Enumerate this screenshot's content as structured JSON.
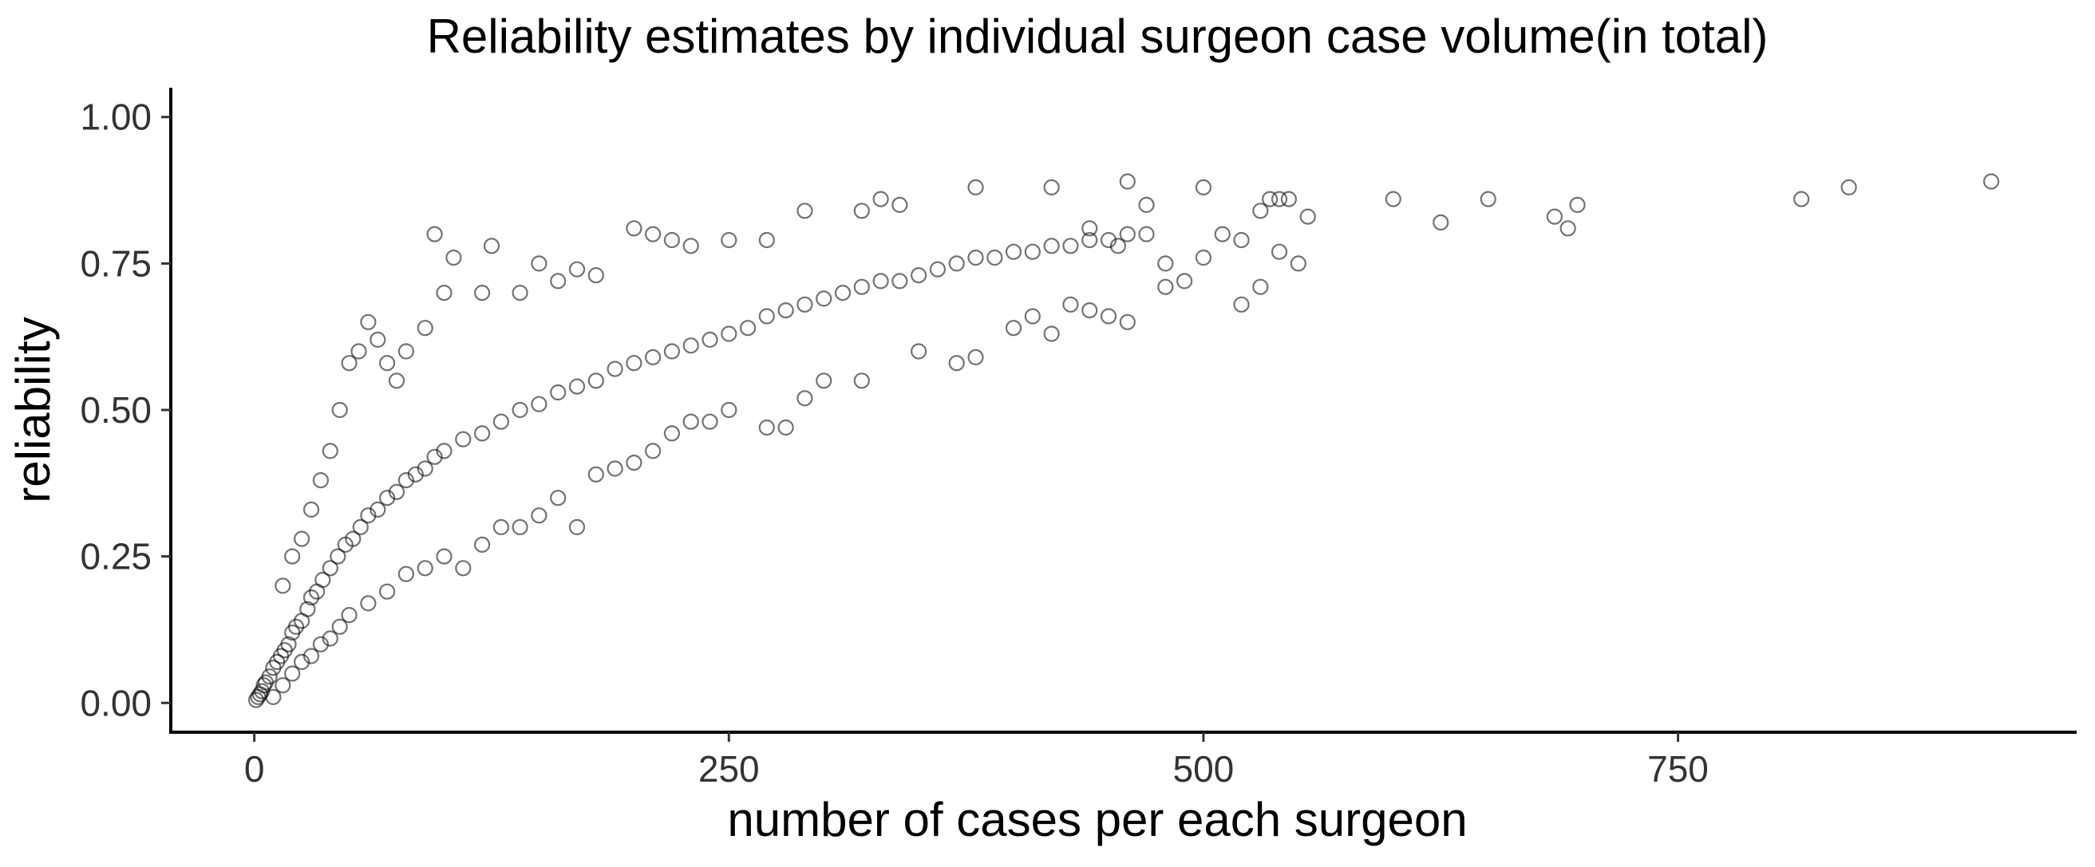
{
  "chart_data": {
    "type": "scatter",
    "title": "Reliability estimates by individual surgeon case volume(in total)",
    "xlabel": "number of cases per each surgeon",
    "ylabel": "reliability",
    "xlim": [
      -44,
      960
    ],
    "ylim": [
      -0.05,
      1.05
    ],
    "x_ticks": [
      0,
      250,
      500,
      750
    ],
    "x_tick_labels": [
      "0",
      "250",
      "500",
      "750"
    ],
    "y_ticks": [
      0,
      0.25,
      0.5,
      0.75,
      1.0
    ],
    "y_tick_labels": [
      "0.00",
      "0.25",
      "0.50",
      "0.75",
      "1.00"
    ],
    "grid": false,
    "legend": "none",
    "marker": {
      "shape": "open-circle",
      "color": "#000000",
      "opacity": 0.55
    },
    "series": [
      {
        "points": [
          [
            1,
            0.005
          ],
          [
            2,
            0.01
          ],
          [
            3,
            0.015
          ],
          [
            4,
            0.02
          ],
          [
            5,
            0.03
          ],
          [
            6,
            0.035
          ],
          [
            8,
            0.045
          ],
          [
            10,
            0.06
          ],
          [
            12,
            0.07
          ],
          [
            14,
            0.08
          ],
          [
            16,
            0.09
          ],
          [
            18,
            0.1
          ],
          [
            20,
            0.12
          ],
          [
            22,
            0.13
          ],
          [
            25,
            0.14
          ],
          [
            28,
            0.16
          ],
          [
            30,
            0.18
          ],
          [
            33,
            0.19
          ],
          [
            36,
            0.21
          ],
          [
            40,
            0.23
          ],
          [
            44,
            0.25
          ],
          [
            48,
            0.27
          ],
          [
            52,
            0.28
          ],
          [
            56,
            0.3
          ],
          [
            60,
            0.32
          ],
          [
            65,
            0.33
          ],
          [
            70,
            0.35
          ],
          [
            75,
            0.36
          ],
          [
            80,
            0.38
          ],
          [
            85,
            0.39
          ],
          [
            90,
            0.4
          ],
          [
            95,
            0.42
          ],
          [
            100,
            0.43
          ],
          [
            110,
            0.45
          ],
          [
            120,
            0.46
          ],
          [
            130,
            0.48
          ],
          [
            140,
            0.5
          ],
          [
            150,
            0.51
          ],
          [
            160,
            0.53
          ],
          [
            170,
            0.54
          ],
          [
            180,
            0.55
          ],
          [
            190,
            0.57
          ],
          [
            200,
            0.58
          ],
          [
            210,
            0.59
          ],
          [
            220,
            0.6
          ],
          [
            230,
            0.61
          ],
          [
            240,
            0.62
          ],
          [
            250,
            0.63
          ],
          [
            260,
            0.64
          ],
          [
            270,
            0.66
          ],
          [
            280,
            0.67
          ],
          [
            290,
            0.68
          ],
          [
            300,
            0.69
          ],
          [
            310,
            0.7
          ],
          [
            320,
            0.71
          ],
          [
            330,
            0.72
          ],
          [
            340,
            0.72
          ],
          [
            350,
            0.73
          ],
          [
            360,
            0.74
          ],
          [
            370,
            0.75
          ],
          [
            380,
            0.76
          ],
          [
            390,
            0.76
          ],
          [
            400,
            0.77
          ],
          [
            410,
            0.77
          ],
          [
            420,
            0.78
          ],
          [
            430,
            0.78
          ],
          [
            440,
            0.79
          ],
          [
            450,
            0.79
          ],
          [
            460,
            0.8
          ],
          [
            470,
            0.8
          ],
          [
            15,
            0.2
          ],
          [
            20,
            0.25
          ],
          [
            25,
            0.28
          ],
          [
            30,
            0.33
          ],
          [
            35,
            0.38
          ],
          [
            40,
            0.43
          ],
          [
            45,
            0.5
          ],
          [
            50,
            0.58
          ],
          [
            55,
            0.6
          ],
          [
            60,
            0.65
          ],
          [
            65,
            0.62
          ],
          [
            70,
            0.58
          ],
          [
            75,
            0.55
          ],
          [
            80,
            0.6
          ],
          [
            90,
            0.64
          ],
          [
            95,
            0.8
          ],
          [
            100,
            0.7
          ],
          [
            105,
            0.76
          ],
          [
            120,
            0.7
          ],
          [
            125,
            0.78
          ],
          [
            140,
            0.7
          ],
          [
            150,
            0.75
          ],
          [
            160,
            0.72
          ],
          [
            170,
            0.74
          ],
          [
            180,
            0.73
          ],
          [
            200,
            0.81
          ],
          [
            210,
            0.8
          ],
          [
            220,
            0.79
          ],
          [
            230,
            0.78
          ],
          [
            250,
            0.79
          ],
          [
            270,
            0.79
          ],
          [
            290,
            0.84
          ],
          [
            320,
            0.84
          ],
          [
            330,
            0.86
          ],
          [
            340,
            0.85
          ],
          [
            380,
            0.88
          ],
          [
            420,
            0.88
          ],
          [
            460,
            0.89
          ],
          [
            500,
            0.88
          ],
          [
            470,
            0.85
          ],
          [
            10,
            0.01
          ],
          [
            15,
            0.03
          ],
          [
            20,
            0.05
          ],
          [
            25,
            0.07
          ],
          [
            30,
            0.08
          ],
          [
            35,
            0.1
          ],
          [
            40,
            0.11
          ],
          [
            45,
            0.13
          ],
          [
            50,
            0.15
          ],
          [
            60,
            0.17
          ],
          [
            70,
            0.19
          ],
          [
            80,
            0.22
          ],
          [
            90,
            0.23
          ],
          [
            100,
            0.25
          ],
          [
            110,
            0.23
          ],
          [
            120,
            0.27
          ],
          [
            130,
            0.3
          ],
          [
            140,
            0.3
          ],
          [
            150,
            0.32
          ],
          [
            160,
            0.35
          ],
          [
            170,
            0.3
          ],
          [
            180,
            0.39
          ],
          [
            190,
            0.4
          ],
          [
            200,
            0.41
          ],
          [
            210,
            0.43
          ],
          [
            220,
            0.46
          ],
          [
            230,
            0.48
          ],
          [
            240,
            0.48
          ],
          [
            250,
            0.5
          ],
          [
            270,
            0.47
          ],
          [
            280,
            0.47
          ],
          [
            290,
            0.52
          ],
          [
            300,
            0.55
          ],
          [
            320,
            0.55
          ],
          [
            350,
            0.6
          ],
          [
            370,
            0.58
          ],
          [
            380,
            0.59
          ],
          [
            400,
            0.64
          ],
          [
            410,
            0.66
          ],
          [
            420,
            0.63
          ],
          [
            430,
            0.68
          ],
          [
            440,
            0.67
          ],
          [
            450,
            0.66
          ],
          [
            460,
            0.65
          ],
          [
            480,
            0.71
          ],
          [
            490,
            0.72
          ],
          [
            520,
            0.68
          ],
          [
            530,
            0.71
          ],
          [
            540,
            0.77
          ],
          [
            550,
            0.75
          ],
          [
            510,
            0.8
          ],
          [
            520,
            0.79
          ],
          [
            530,
            0.84
          ],
          [
            535,
            0.86
          ],
          [
            540,
            0.86
          ],
          [
            545,
            0.86
          ],
          [
            555,
            0.83
          ],
          [
            600,
            0.86
          ],
          [
            625,
            0.82
          ],
          [
            650,
            0.86
          ],
          [
            685,
            0.83
          ],
          [
            692,
            0.81
          ],
          [
            697,
            0.85
          ],
          [
            815,
            0.86
          ],
          [
            840,
            0.88
          ],
          [
            915,
            0.89
          ],
          [
            500,
            0.76
          ],
          [
            480,
            0.75
          ],
          [
            455,
            0.78
          ],
          [
            440,
            0.81
          ]
        ]
      }
    ]
  }
}
